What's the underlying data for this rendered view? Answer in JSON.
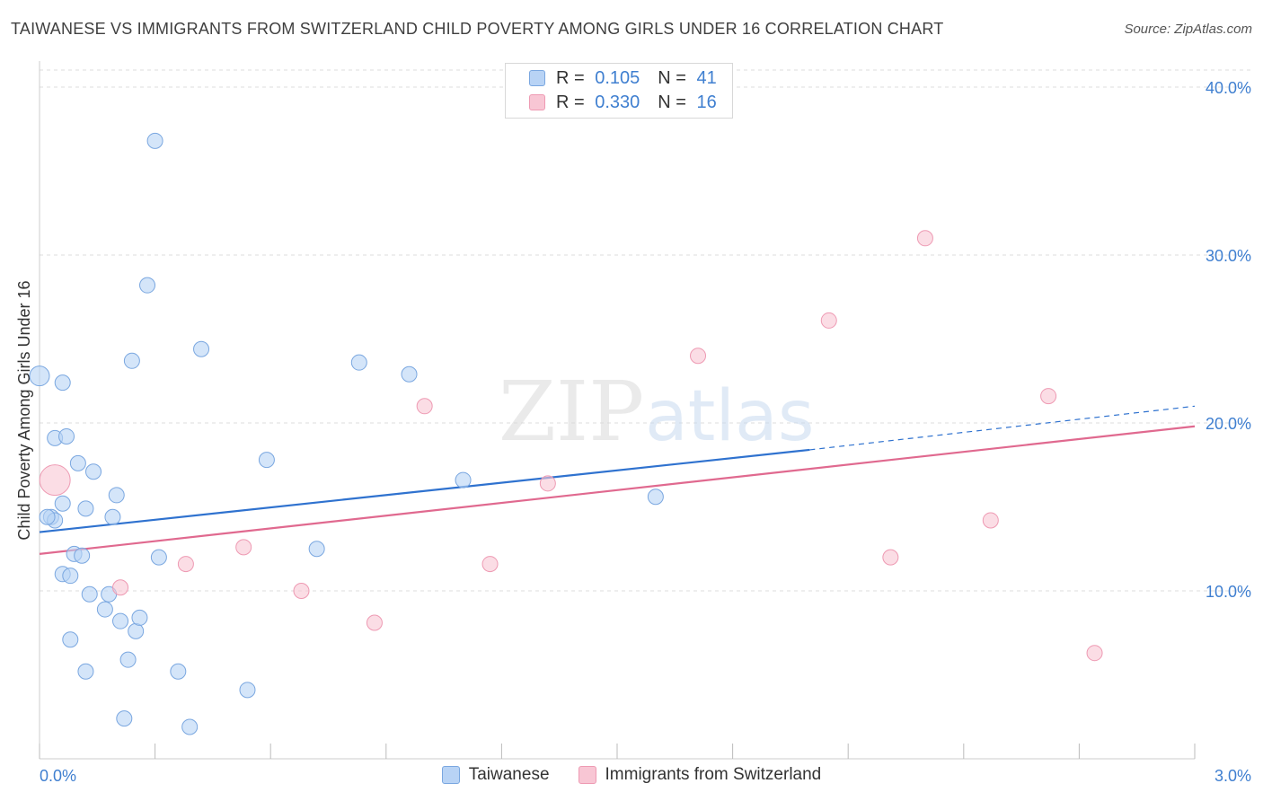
{
  "title": "TAIWANESE VS IMMIGRANTS FROM SWITZERLAND CHILD POVERTY AMONG GIRLS UNDER 16 CORRELATION CHART",
  "source": "Source: ZipAtlas.com",
  "watermark": {
    "zip": "ZIP",
    "atlas": "atlas"
  },
  "legend": {
    "r_label": "R =",
    "n_label": "N =",
    "rows": [
      {
        "r": "0.105",
        "n": "41"
      },
      {
        "r": "0.330",
        "n": "16"
      }
    ]
  },
  "colors": {
    "blue_fill": "#b8d3f5",
    "blue_stroke": "#7aa7e0",
    "blue_line": "#2f72cf",
    "pink_fill": "#f8c6d4",
    "pink_stroke": "#ee9ab3",
    "pink_line": "#e0698f",
    "grid": "#dddddd",
    "tick_text": "#3f7fd0"
  },
  "chart_data": {
    "type": "scatter",
    "title": "TAIWANESE VS IMMIGRANTS FROM SWITZERLAND CHILD POVERTY AMONG GIRLS UNDER 16 CORRELATION CHART",
    "xlabel": "",
    "ylabel": "Child Poverty Among Girls Under 16",
    "xlim": [
      0,
      3.0
    ],
    "ylim": [
      0,
      40
    ],
    "x_tick_labels": [
      "0.0%",
      "3.0%"
    ],
    "y_ticks": [
      10,
      20,
      30,
      40
    ],
    "y_tick_labels": [
      "10.0%",
      "20.0%",
      "30.0%",
      "40.0%"
    ],
    "series": [
      {
        "name": "Taiwanese",
        "color": "blue",
        "r": 0.105,
        "n": 41,
        "trend": {
          "x0": 0.0,
          "y0": 13.5,
          "x1": 2.0,
          "y1": 18.4,
          "dash_to_x": 3.0,
          "dash_to_y": 21.0
        },
        "points": [
          [
            0.0,
            22.8,
            1
          ],
          [
            0.03,
            14.4,
            0
          ],
          [
            0.04,
            14.2,
            0
          ],
          [
            0.06,
            11.0,
            0
          ],
          [
            0.04,
            19.1,
            0
          ],
          [
            0.06,
            15.2,
            0
          ],
          [
            0.06,
            22.4,
            0
          ],
          [
            0.07,
            19.2,
            0
          ],
          [
            0.08,
            10.9,
            0
          ],
          [
            0.08,
            7.1,
            0
          ],
          [
            0.09,
            12.2,
            0
          ],
          [
            0.1,
            17.6,
            0
          ],
          [
            0.11,
            12.1,
            0
          ],
          [
            0.12,
            14.9,
            0
          ],
          [
            0.12,
            5.2,
            0
          ],
          [
            0.13,
            9.8,
            0
          ],
          [
            0.14,
            17.1,
            0
          ],
          [
            0.17,
            8.9,
            0
          ],
          [
            0.18,
            9.8,
            0
          ],
          [
            0.19,
            14.4,
            0
          ],
          [
            0.2,
            15.7,
            0
          ],
          [
            0.21,
            8.2,
            0
          ],
          [
            0.22,
            2.4,
            0
          ],
          [
            0.23,
            5.9,
            0
          ],
          [
            0.24,
            23.7,
            0
          ],
          [
            0.25,
            7.6,
            0
          ],
          [
            0.26,
            8.4,
            0
          ],
          [
            0.28,
            28.2,
            0
          ],
          [
            0.3,
            36.8,
            0
          ],
          [
            0.31,
            12.0,
            0
          ],
          [
            0.36,
            5.2,
            0
          ],
          [
            0.39,
            1.9,
            0
          ],
          [
            0.42,
            24.4,
            0
          ],
          [
            0.54,
            4.1,
            0
          ],
          [
            0.59,
            17.8,
            0
          ],
          [
            0.72,
            12.5,
            0
          ],
          [
            0.83,
            23.6,
            0
          ],
          [
            0.96,
            22.9,
            0
          ],
          [
            1.1,
            16.6,
            0
          ],
          [
            1.6,
            15.6,
            0
          ],
          [
            0.02,
            14.4,
            0
          ]
        ]
      },
      {
        "name": "Immigrants from Switzerland",
        "color": "pink",
        "r": 0.33,
        "n": 16,
        "trend": {
          "x0": 0.0,
          "y0": 12.2,
          "x1": 3.0,
          "y1": 19.8
        },
        "points": [
          [
            0.04,
            16.6,
            1
          ],
          [
            0.21,
            10.2,
            0
          ],
          [
            0.38,
            11.6,
            0
          ],
          [
            0.53,
            12.6,
            0
          ],
          [
            0.68,
            10.0,
            0
          ],
          [
            0.87,
            8.1,
            0
          ],
          [
            1.0,
            21.0,
            0
          ],
          [
            1.17,
            11.6,
            0
          ],
          [
            1.32,
            16.4,
            0
          ],
          [
            1.71,
            24.0,
            0
          ],
          [
            2.05,
            26.1,
            0
          ],
          [
            2.21,
            12.0,
            0
          ],
          [
            2.3,
            31.0,
            0
          ],
          [
            2.47,
            14.2,
            0
          ],
          [
            2.62,
            21.6,
            0
          ],
          [
            2.74,
            6.3,
            0
          ]
        ]
      }
    ]
  },
  "bottom_legend": [
    "Taiwanese",
    "Immigrants from Switzerland"
  ]
}
